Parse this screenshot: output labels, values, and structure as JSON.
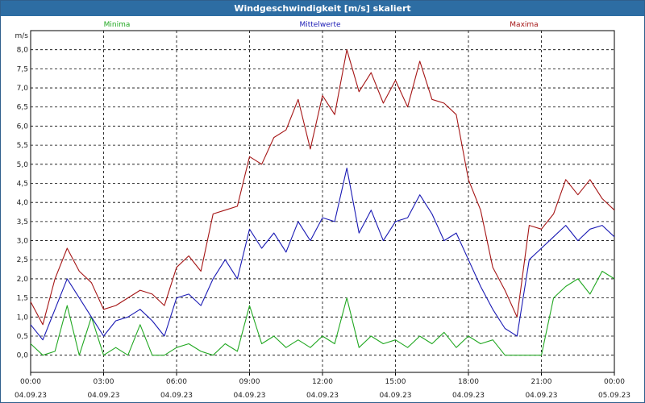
{
  "window": {
    "title": "Windgeschwindigkeit [m/s] skaliert"
  },
  "colors": {
    "minima": "#22a822",
    "mittel": "#1a1ab4",
    "maxima": "#a51515",
    "grid": "#000000",
    "title_bar": "#2d6da3"
  },
  "chart_data": {
    "type": "line",
    "title": "Windgeschwindigkeit [m/s] skaliert",
    "ylabel": "m/s",
    "xlabel": "",
    "ylim": [
      -0.45,
      8.5
    ],
    "xlim": [
      0,
      24
    ],
    "y_ticks": [
      "0,0",
      "0,5",
      "1,0",
      "1,5",
      "2,0",
      "2,5",
      "3,0",
      "3,5",
      "4,0",
      "4,5",
      "5,0",
      "5,5",
      "6,0",
      "6,5",
      "7,0",
      "7,5",
      "8,0"
    ],
    "x_ticks": [
      {
        "time": "00:00",
        "date": "04.09.23"
      },
      {
        "time": "03:00",
        "date": "04.09.23"
      },
      {
        "time": "06:00",
        "date": "04.09.23"
      },
      {
        "time": "09:00",
        "date": "04.09.23"
      },
      {
        "time": "12:00",
        "date": "04.09.23"
      },
      {
        "time": "15:00",
        "date": "04.09.23"
      },
      {
        "time": "18:00",
        "date": "04.09.23"
      },
      {
        "time": "21:00",
        "date": "04.09.23"
      },
      {
        "time": "00:00",
        "date": "05.09.23"
      }
    ],
    "grid": true,
    "legend_position": "top",
    "series": [
      {
        "name": "Minima",
        "x": [
          0,
          0.5,
          1,
          1.5,
          2,
          2.5,
          3,
          3.5,
          4,
          4.5,
          5,
          5.5,
          6,
          6.5,
          7,
          7.5,
          8,
          8.5,
          9,
          9.5,
          10,
          10.5,
          11,
          11.5,
          12,
          12.5,
          13,
          13.5,
          14,
          14.5,
          15,
          15.5,
          16,
          16.5,
          17,
          17.5,
          18,
          18.5,
          19,
          19.5,
          20,
          20.5,
          21,
          21.5,
          22,
          22.5,
          23,
          23.5,
          24
        ],
        "values": [
          0.3,
          0.0,
          0.1,
          1.3,
          0.0,
          1.0,
          0.0,
          0.2,
          0.0,
          0.8,
          0.0,
          0.0,
          0.2,
          0.3,
          0.1,
          0.0,
          0.3,
          0.1,
          1.3,
          0.3,
          0.5,
          0.2,
          0.4,
          0.2,
          0.5,
          0.3,
          1.5,
          0.2,
          0.5,
          0.3,
          0.4,
          0.2,
          0.5,
          0.3,
          0.6,
          0.2,
          0.5,
          0.3,
          0.4,
          0.0,
          0.0,
          0.0,
          0.0,
          1.5,
          1.8,
          2.0,
          1.6,
          2.2,
          2.0
        ]
      },
      {
        "name": "Mittelwerte",
        "x": [
          0,
          0.5,
          1,
          1.5,
          2,
          2.5,
          3,
          3.5,
          4,
          4.5,
          5,
          5.5,
          6,
          6.5,
          7,
          7.5,
          8,
          8.5,
          9,
          9.5,
          10,
          10.5,
          11,
          11.5,
          12,
          12.5,
          13,
          13.5,
          14,
          14.5,
          15,
          15.5,
          16,
          16.5,
          17,
          17.5,
          18,
          18.5,
          19,
          19.5,
          20,
          20.5,
          21,
          21.5,
          22,
          22.5,
          23,
          23.5,
          24
        ],
        "values": [
          0.8,
          0.4,
          1.2,
          2.0,
          1.5,
          1.0,
          0.5,
          0.9,
          1.0,
          1.2,
          0.9,
          0.5,
          1.5,
          1.6,
          1.3,
          2.0,
          2.5,
          2.0,
          3.3,
          2.8,
          3.2,
          2.7,
          3.5,
          3.0,
          3.6,
          3.5,
          4.9,
          3.2,
          3.8,
          3.0,
          3.5,
          3.6,
          4.2,
          3.7,
          3.0,
          3.2,
          2.5,
          1.8,
          1.2,
          0.7,
          0.5,
          2.5,
          2.8,
          3.1,
          3.4,
          3.0,
          3.3,
          3.4,
          3.1
        ]
      },
      {
        "name": "Maxima",
        "x": [
          0,
          0.5,
          1,
          1.5,
          2,
          2.5,
          3,
          3.5,
          4,
          4.5,
          5,
          5.5,
          6,
          6.5,
          7,
          7.5,
          8,
          8.5,
          9,
          9.5,
          10,
          10.5,
          11,
          11.5,
          12,
          12.5,
          13,
          13.5,
          14,
          14.5,
          15,
          15.5,
          16,
          16.5,
          17,
          17.5,
          18,
          18.5,
          19,
          19.5,
          20,
          20.5,
          21,
          21.5,
          22,
          22.5,
          23,
          23.5,
          24
        ],
        "values": [
          1.4,
          0.8,
          2.0,
          2.8,
          2.2,
          1.9,
          1.2,
          1.3,
          1.5,
          1.7,
          1.6,
          1.3,
          2.3,
          2.6,
          2.2,
          3.7,
          3.8,
          3.9,
          5.2,
          5.0,
          5.7,
          5.9,
          6.7,
          5.4,
          6.8,
          6.3,
          8.0,
          6.9,
          7.4,
          6.6,
          7.2,
          6.5,
          7.7,
          6.7,
          6.6,
          6.3,
          4.6,
          3.8,
          2.3,
          1.7,
          1.0,
          3.4,
          3.3,
          3.7,
          4.6,
          4.2,
          4.6,
          4.1,
          3.8
        ]
      }
    ]
  }
}
